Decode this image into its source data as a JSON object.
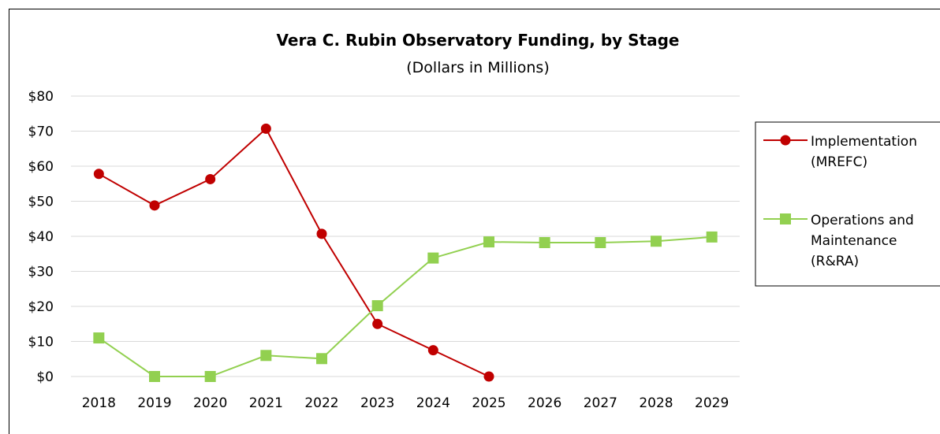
{
  "chart_data": {
    "type": "line",
    "title": "Vera C. Rubin Observatory Funding, by Stage",
    "subtitle": "(Dollars in Millions)",
    "xlabel": "",
    "ylabel": "",
    "categories": [
      "2018",
      "2019",
      "2020",
      "2021",
      "2022",
      "2023",
      "2024",
      "2025",
      "2026",
      "2027",
      "2028",
      "2029"
    ],
    "ylim": [
      0,
      80
    ],
    "y_ticks": [
      0,
      10,
      20,
      30,
      40,
      50,
      60,
      70,
      80
    ],
    "y_tick_labels": [
      "$0",
      "$10",
      "$20",
      "$30",
      "$40",
      "$50",
      "$60",
      "$70",
      "$80"
    ],
    "grid": true,
    "legend_position": "right",
    "series": [
      {
        "name": "Implementation (MREFC)",
        "legend_lines": [
          "Implementation",
          "(MREFC)"
        ],
        "color": "#c00000",
        "marker": "circle",
        "values": [
          57.8,
          48.8,
          56.3,
          70.7,
          40.7,
          15.0,
          7.5,
          0.0,
          null,
          null,
          null,
          null
        ]
      },
      {
        "name": "Operations and Maintenance (R&RA)",
        "legend_lines": [
          "Operations and",
          "Maintenance",
          "(R&RA)"
        ],
        "color": "#92d050",
        "marker": "square",
        "values": [
          11.0,
          0.0,
          0.0,
          6.0,
          5.1,
          20.2,
          33.8,
          38.4,
          38.2,
          38.2,
          38.6,
          39.8
        ]
      }
    ]
  }
}
